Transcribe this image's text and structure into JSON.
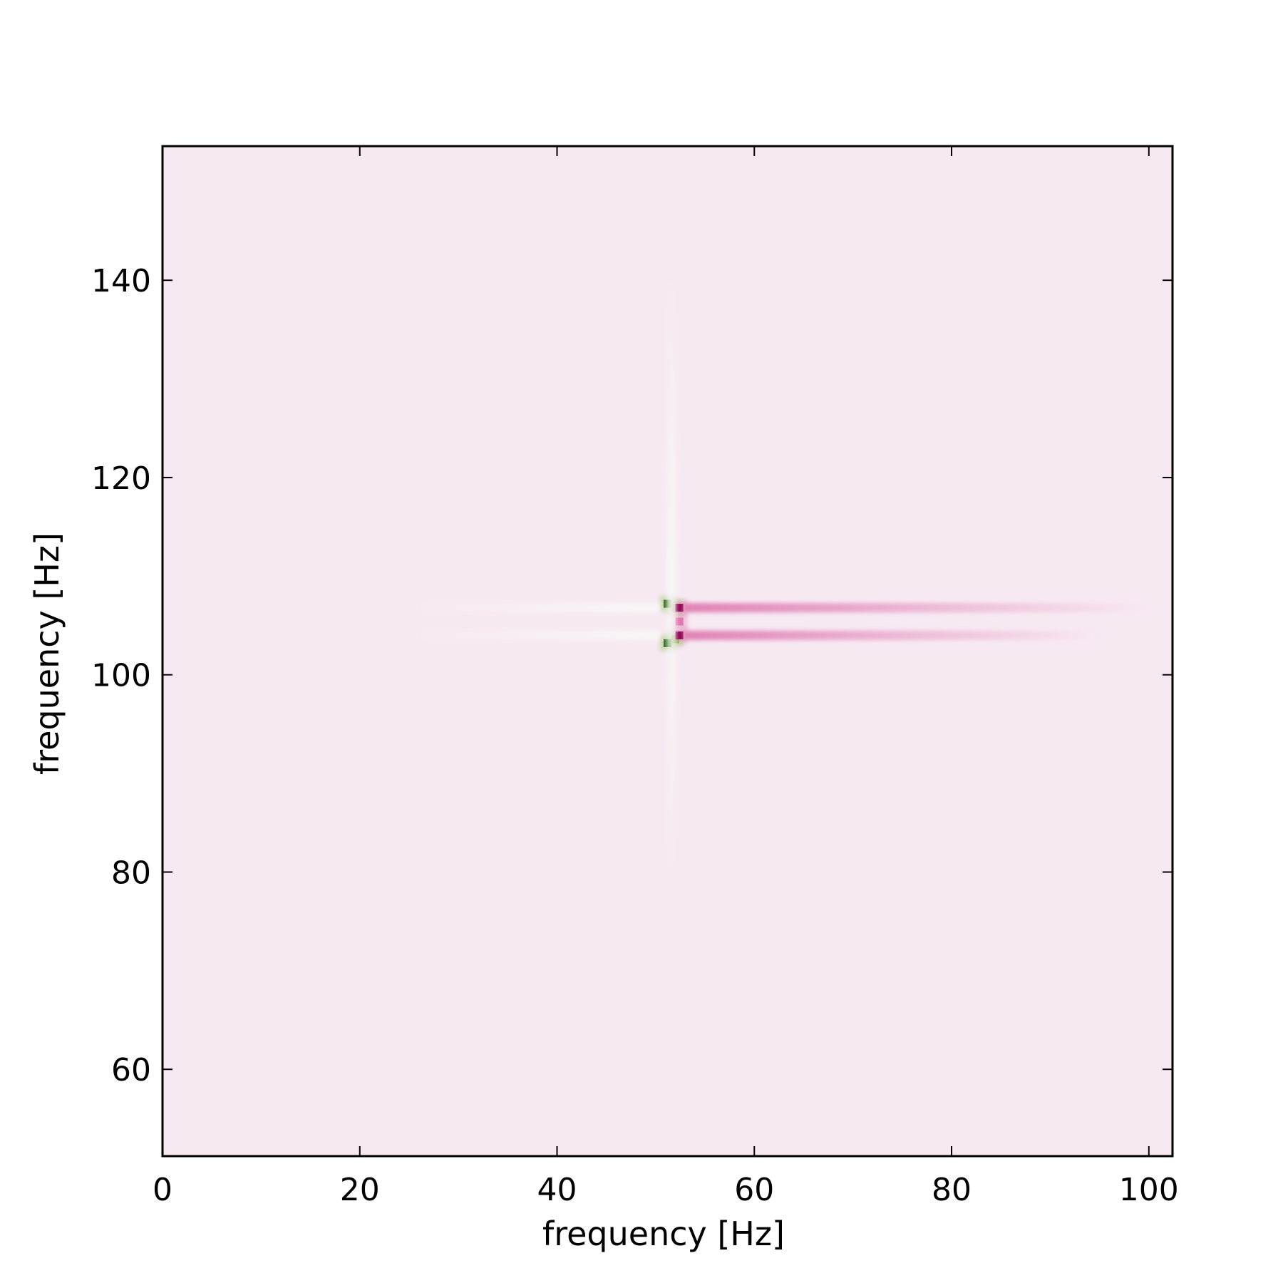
{
  "chart_data": {
    "type": "heatmap",
    "title": "",
    "xlabel": "frequency [Hz]",
    "ylabel": "frequency [Hz]",
    "xlim": [
      0,
      102.4
    ],
    "ylim": [
      51.2,
      153.6
    ],
    "xticks": [
      0,
      20,
      40,
      60,
      80,
      100
    ],
    "yticks": [
      60,
      80,
      100,
      120,
      140
    ],
    "xtick_labels": [
      "0",
      "20",
      "40",
      "60",
      "80",
      "100"
    ],
    "ytick_labels": [
      "60",
      "80",
      "100",
      "120",
      "140"
    ],
    "grid": false,
    "colormap": "PiYG",
    "background_color": "#f7e9f2",
    "colors": {
      "strong_positive": "#276419",
      "positive": "#7fbc41",
      "neutral": "#f7f7f7",
      "negative": "#de77ae",
      "strong_negative": "#8e0152"
    },
    "features": [
      {
        "kind": "peak",
        "x": 51.2,
        "y": 107.2,
        "value": 1.0
      },
      {
        "kind": "peak",
        "x": 51.2,
        "y": 103.2,
        "value": 1.0
      },
      {
        "kind": "peak",
        "x": 52.0,
        "y": 106.8,
        "value": 0.7
      },
      {
        "kind": "peak",
        "x": 52.0,
        "y": 103.6,
        "value": 0.7
      },
      {
        "kind": "trough",
        "x": 52.4,
        "y": 106.8,
        "value": -1.0
      },
      {
        "kind": "trough",
        "x": 52.4,
        "y": 104.0,
        "value": -0.9
      },
      {
        "kind": "trough",
        "x": 52.4,
        "y": 105.4,
        "value": -0.5
      },
      {
        "kind": "streak",
        "x_from": 52.8,
        "x_to": 100.0,
        "y": 106.8,
        "value": -0.35
      },
      {
        "kind": "streak",
        "x_from": 52.8,
        "x_to": 95.0,
        "y": 104.0,
        "value": -0.35
      },
      {
        "kind": "streak",
        "x_from": 25.0,
        "x_to": 50.4,
        "y": 106.8,
        "value": 0.15
      },
      {
        "kind": "streak",
        "x_from": 25.0,
        "x_to": 50.4,
        "y": 104.0,
        "value": 0.15
      },
      {
        "kind": "vertical-streak",
        "x": 51.6,
        "y_from": 80.0,
        "y_to": 140.0,
        "value": 0.12
      }
    ]
  }
}
